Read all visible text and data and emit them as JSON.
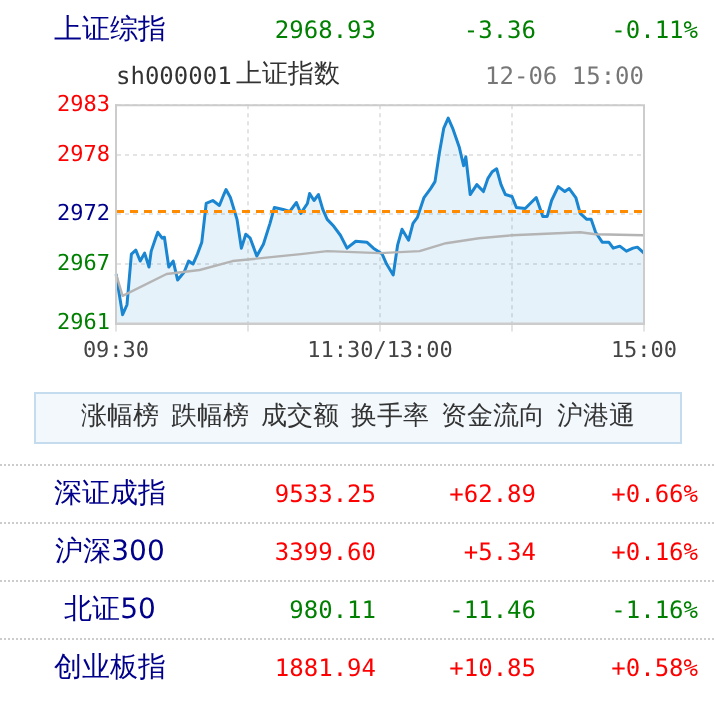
{
  "chart_data": [
    {
      "type": "other",
      "categories": [
        "上证综指"
      ],
      "series": [
        {
          "values": [
            2968.93
          ],
          "value_labels": [
            "2968.93"
          ]
        },
        {
          "values": [
            -3.36
          ],
          "value_labels": [
            "-3.36"
          ]
        },
        {
          "values": [
            -0.11
          ],
          "value_labels": [
            "-0.11%"
          ]
        }
      ]
    },
    {
      "type": "area",
      "title": "上证指数",
      "subtitle": "sh000001",
      "annotations": [
        "12-06 15:00"
      ],
      "categories": [
        "09:30",
        null,
        null,
        null,
        null,
        null,
        null,
        null,
        null,
        null,
        null,
        null,
        null,
        null,
        null,
        null,
        null,
        null,
        null,
        null,
        null,
        null,
        null,
        null,
        null,
        null,
        null,
        null,
        null,
        null,
        null,
        null,
        null,
        null,
        null,
        null,
        null,
        null,
        null,
        null,
        null,
        null,
        null,
        null,
        null,
        null,
        null,
        null,
        null,
        null,
        null,
        null,
        null,
        null,
        null,
        null,
        null,
        null,
        null,
        null,
        null,
        null,
        null,
        null,
        null,
        null,
        null,
        null,
        null,
        null,
        null,
        null,
        null,
        null,
        null,
        null,
        null,
        null,
        null,
        null,
        null,
        null,
        null,
        null,
        null,
        null,
        null,
        null,
        null,
        null,
        null,
        null,
        null,
        null,
        null,
        null,
        null,
        null,
        null,
        null,
        null,
        null,
        null,
        null,
        null,
        null,
        null,
        null,
        null,
        null,
        null,
        null,
        null,
        null,
        null,
        null,
        null,
        null,
        null,
        null,
        "11:30/13:00",
        null,
        null,
        null,
        null,
        null,
        null,
        null,
        null,
        null,
        null,
        null,
        null,
        null,
        null,
        null,
        null,
        null,
        null,
        null,
        null,
        null,
        null,
        null,
        null,
        null,
        null,
        null,
        null,
        null,
        null,
        null,
        null,
        null,
        null,
        null,
        null,
        null,
        null,
        null,
        null,
        null,
        null,
        null,
        null,
        null,
        null,
        null,
        null,
        null,
        null,
        null,
        null,
        null,
        null,
        null,
        null,
        null,
        null,
        null,
        null,
        null,
        null,
        null,
        null,
        null,
        null,
        null,
        null,
        null,
        null,
        null,
        null,
        null,
        null,
        null,
        null,
        null,
        null,
        null,
        null,
        null,
        null,
        null,
        null,
        null,
        null,
        null,
        null,
        null,
        null,
        null,
        null,
        null,
        null,
        null,
        null,
        null,
        null,
        null,
        null,
        null,
        null,
        null,
        null,
        null,
        null,
        null,
        null,
        null,
        null,
        null,
        null,
        null,
        null,
        null,
        null,
        null,
        null,
        null,
        "15:00"
      ],
      "ylim": [
        2961,
        2983
      ],
      "yticks": [
        2961,
        2967,
        2972,
        2978,
        2983
      ],
      "grid": true,
      "marker": "none",
      "ref_lines": [
        {
          "axis": "y",
          "value": 2972.29,
          "color": "#ff8c00",
          "line_style": "dashed"
        }
      ],
      "series": [
        {
          "type": "area",
          "color": "#1a85d0",
          "values": [
            2966.0,
            null,
            null,
            2961.9,
            null,
            2962.9,
            null,
            2968.0,
            null,
            2968.4,
            null,
            2967.3,
            null,
            2968.1,
            null,
            2966.7,
            2968.3,
            null,
            2969.6,
            2970.2,
            null,
            2969.6,
            2969.7,
            null,
            2966.7,
            null,
            2967.3,
            null,
            2965.4,
            null,
            null,
            2966.2,
            null,
            2967.3,
            null,
            2967.0,
            null,
            2968.0,
            null,
            2969.2,
            null,
            2973.1,
            null,
            null,
            2973.4,
            null,
            null,
            2972.9,
            null,
            2974.0,
            2974.5,
            null,
            2973.7,
            null,
            null,
            2971.5,
            null,
            2968.6,
            null,
            2970.0,
            null,
            2969.6,
            null,
            null,
            2967.8,
            null,
            null,
            2969.0,
            null,
            null,
            2971.1,
            null,
            2972.7,
            null,
            null,
            null,
            2972.5,
            null,
            null,
            2972.3,
            null,
            null,
            2973.2,
            null,
            2972.1,
            null,
            null,
            2973.1,
            2974.1,
            null,
            2973.4,
            null,
            2974.0,
            null,
            2972.5,
            null,
            2971.5,
            null,
            null,
            2970.8,
            null,
            null,
            2969.9,
            null,
            null,
            2968.6,
            null,
            null,
            null,
            2969.3,
            null,
            null,
            null,
            null,
            2969.2,
            null,
            null,
            2968.6,
            null,
            null,
            null,
            2968.0,
            null,
            2967.0,
            null,
            null,
            2965.9,
            null,
            2968.9,
            null,
            2970.5,
            null,
            null,
            2969.4,
            null,
            2971.1,
            null,
            2971.7,
            null,
            null,
            2973.7,
            null,
            null,
            2974.6,
            null,
            2975.3,
            null,
            2978.2,
            null,
            2980.7,
            null,
            2981.7,
            null,
            2980.7,
            null,
            null,
            2978.8,
            null,
            2976.9,
            2977.8,
            null,
            2974.0,
            null,
            null,
            2975.0,
            null,
            null,
            2974.3,
            null,
            2975.6,
            null,
            2976.3,
            null,
            2976.6,
            null,
            2975.0,
            null,
            2974.0,
            null,
            null,
            2973.8,
            null,
            2972.7,
            null,
            null,
            null,
            2972.6,
            null,
            null,
            null,
            null,
            2973.7,
            null,
            null,
            2971.8,
            null,
            2971.8,
            null,
            2973.4,
            null,
            null,
            2974.8,
            null,
            null,
            2974.3,
            null,
            2974.6,
            null,
            null,
            2973.7,
            null,
            2972.1,
            null,
            null,
            2971.5,
            null,
            2971.5,
            null,
            2970.2,
            null,
            null,
            2969.2,
            null,
            null,
            2969.2,
            null,
            2968.6,
            null,
            null,
            2968.8,
            null,
            null,
            2968.3,
            null,
            null,
            2968.6,
            null,
            2968.7,
            null,
            null,
            2968.1
          ]
        },
        {
          "type": "line",
          "color": "#b4b4b4",
          "values": [
            2966.0,
            null,
            null,
            2963.8,
            null,
            null,
            null,
            null,
            null,
            null,
            null,
            null,
            null,
            null,
            null,
            null,
            null,
            null,
            null,
            null,
            null,
            null,
            null,
            2966.0,
            null,
            null,
            null,
            null,
            null,
            null,
            null,
            null,
            null,
            null,
            null,
            null,
            null,
            null,
            2966.4,
            null,
            null,
            null,
            null,
            null,
            null,
            null,
            null,
            null,
            null,
            null,
            null,
            null,
            null,
            2967.3,
            null,
            null,
            null,
            null,
            null,
            null,
            null,
            null,
            null,
            null,
            null,
            null,
            null,
            null,
            null,
            null,
            null,
            null,
            null,
            null,
            null,
            null,
            null,
            null,
            null,
            null,
            null,
            null,
            null,
            null,
            2968.0,
            null,
            null,
            null,
            null,
            null,
            null,
            null,
            null,
            null,
            null,
            null,
            2968.3,
            null,
            null,
            null,
            null,
            null,
            null,
            null,
            null,
            null,
            null,
            null,
            null,
            null,
            null,
            null,
            null,
            null,
            null,
            null,
            null,
            null,
            null,
            null,
            2968.1,
            null,
            null,
            null,
            null,
            null,
            null,
            null,
            null,
            null,
            null,
            null,
            null,
            null,
            null,
            null,
            null,
            null,
            2968.3,
            null,
            null,
            null,
            null,
            null,
            null,
            null,
            null,
            null,
            null,
            null,
            2969.1,
            null,
            null,
            null,
            null,
            null,
            null,
            null,
            null,
            null,
            null,
            null,
            null,
            null,
            null,
            2969.6,
            null,
            null,
            null,
            null,
            null,
            null,
            null,
            null,
            null,
            null,
            null,
            null,
            null,
            null,
            2969.9,
            null,
            null,
            null,
            null,
            null,
            null,
            null,
            null,
            null,
            null,
            null,
            null,
            null,
            null,
            null,
            null,
            null,
            null,
            null,
            null,
            null,
            null,
            null,
            null,
            null,
            null,
            null,
            null,
            null,
            null,
            2970.2,
            null,
            null,
            null,
            null,
            null,
            null,
            2970.0,
            null,
            null,
            null,
            null,
            null,
            null,
            null,
            null,
            null,
            null,
            null,
            null,
            null,
            null,
            null,
            null,
            null,
            null,
            null,
            null,
            null,
            2969.9
          ]
        }
      ]
    },
    {
      "type": "other",
      "annotations": [
        "涨幅榜",
        "跌幅榜",
        "成交额",
        "换手率",
        "资金流向",
        "沪港通"
      ]
    },
    {
      "type": "other",
      "categories": [
        "深证成指",
        "沪深300",
        "北证50",
        "创业板指"
      ],
      "series": [
        {
          "values": [
            9533.25,
            3399.6,
            980.11,
            1881.94
          ],
          "value_labels": [
            "9533.25",
            "3399.60",
            "980.11",
            "1881.94"
          ]
        },
        {
          "values": [
            62.89,
            5.34,
            -11.46,
            10.85
          ],
          "value_labels": [
            "+62.89",
            "+5.34",
            "-11.46",
            "+10.85"
          ]
        },
        {
          "values": [
            0.66,
            0.16,
            -1.16,
            0.58
          ],
          "value_labels": [
            "+0.66%",
            "+0.16%",
            "-1.16%",
            "+0.58%"
          ]
        }
      ]
    }
  ]
}
